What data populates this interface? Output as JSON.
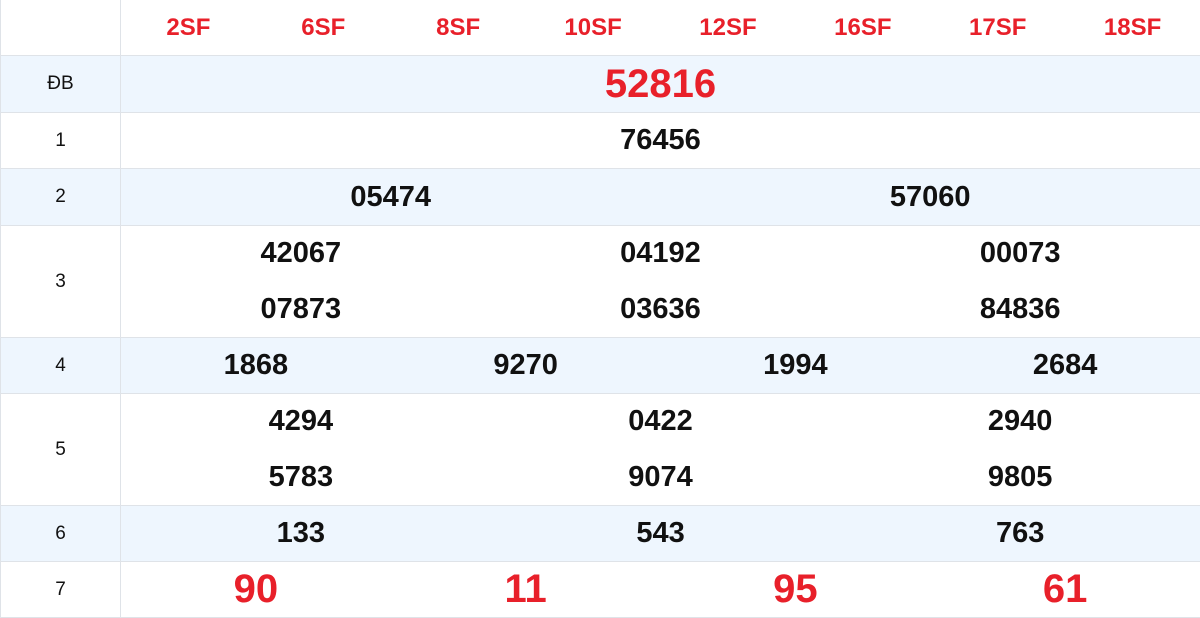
{
  "header": {
    "codes": [
      "2SF",
      "6SF",
      "8SF",
      "10SF",
      "12SF",
      "16SF",
      "17SF",
      "18SF"
    ]
  },
  "prizes": [
    {
      "label": "ĐB",
      "lines": [
        [
          "52816"
        ]
      ],
      "highlight": true
    },
    {
      "label": "1",
      "lines": [
        [
          "76456"
        ]
      ]
    },
    {
      "label": "2",
      "lines": [
        [
          "05474",
          "57060"
        ]
      ]
    },
    {
      "label": "3",
      "lines": [
        [
          "42067",
          "04192",
          "00073"
        ],
        [
          "07873",
          "03636",
          "84836"
        ]
      ]
    },
    {
      "label": "4",
      "lines": [
        [
          "1868",
          "9270",
          "1994",
          "2684"
        ]
      ]
    },
    {
      "label": "5",
      "lines": [
        [
          "4294",
          "0422",
          "2940"
        ],
        [
          "5783",
          "9074",
          "9805"
        ]
      ]
    },
    {
      "label": "6",
      "lines": [
        [
          "133",
          "543",
          "763"
        ]
      ]
    },
    {
      "label": "7",
      "lines": [
        [
          "90",
          "11",
          "95",
          "61"
        ]
      ],
      "highlight": true
    }
  ],
  "colors": {
    "accent": "#e8202a",
    "alt_row": "#eef6fe",
    "border": "#dfe3e8"
  }
}
